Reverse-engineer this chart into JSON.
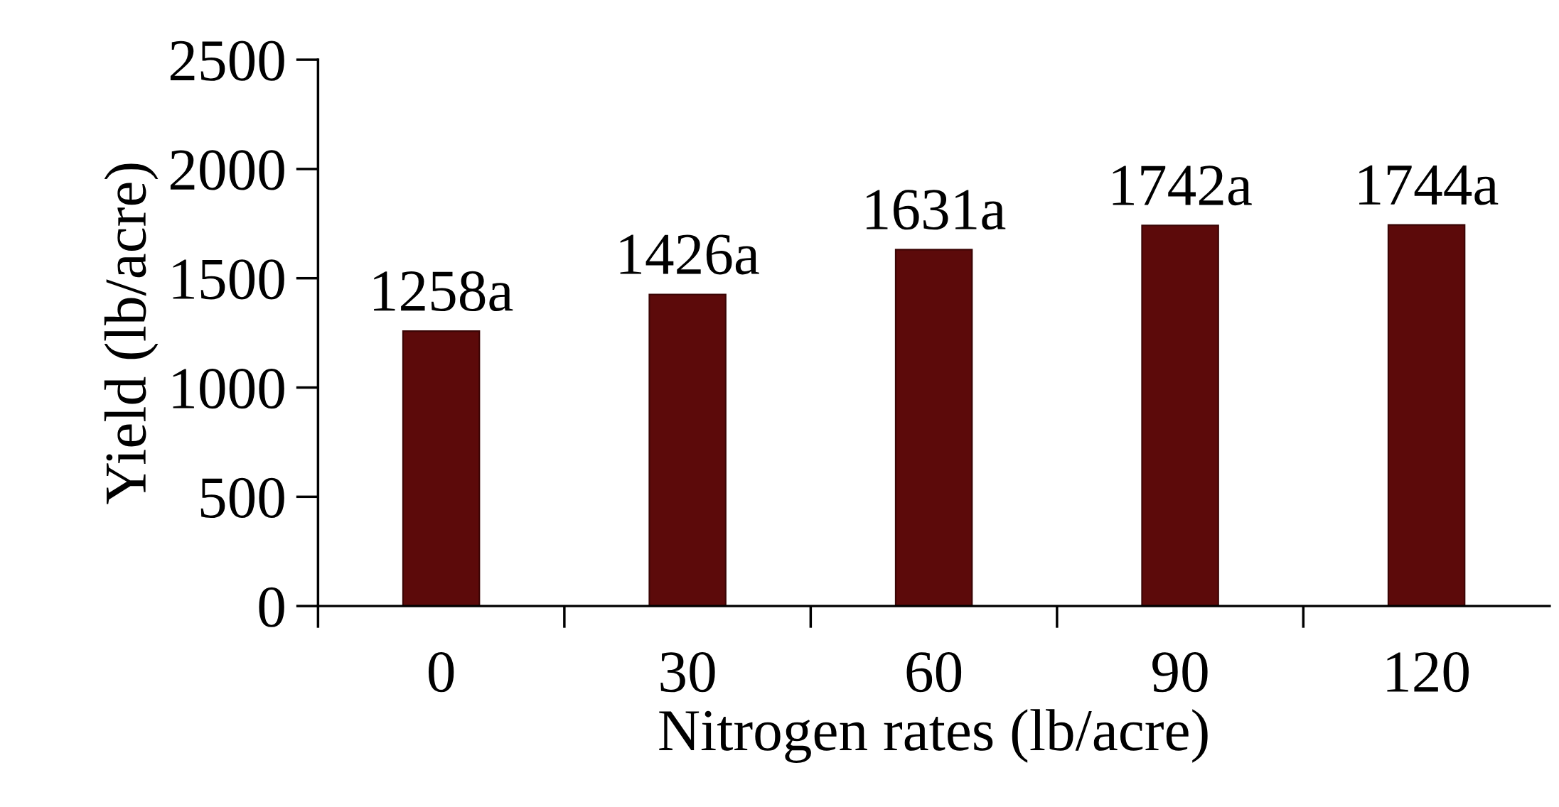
{
  "chart_data": {
    "type": "bar",
    "xlabel": "Nitrogen rates (lb/acre)",
    "ylabel": "Yield (lb/acre)",
    "categories": [
      "0",
      "30",
      "60",
      "90",
      "120"
    ],
    "values": [
      1258,
      1426,
      1631,
      1742,
      1744
    ],
    "value_labels": [
      "1258a",
      "1426a",
      "1631a",
      "1742a",
      "1744a"
    ],
    "color": "#5c0a0a",
    "ylim": [
      0,
      2500
    ],
    "yticks": [
      0,
      500,
      1000,
      1500,
      2000,
      2500
    ],
    "grid": false,
    "legend": false
  }
}
